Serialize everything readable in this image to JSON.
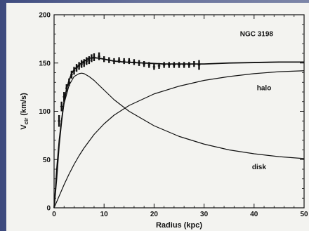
{
  "chart_data": {
    "type": "line",
    "title": "NGC 3198",
    "xlabel": "Radius (kpc)",
    "ylabel_main": "V",
    "ylabel_sub": "cir",
    "ylabel_unit": "(km/s)",
    "xlim": [
      0,
      50
    ],
    "ylim": [
      0,
      200
    ],
    "xticks": [
      0,
      10,
      20,
      30,
      40,
      50
    ],
    "yticks": [
      0,
      50,
      100,
      150,
      200
    ],
    "grid": false,
    "series": [
      {
        "name": "",
        "values_x": [
          0,
          0.5,
          1,
          1.5,
          2,
          2.5,
          3,
          3.5,
          4,
          5,
          6,
          7,
          8,
          9,
          10,
          12,
          14,
          16,
          18,
          20,
          22,
          25,
          30,
          35,
          40,
          45,
          50
        ],
        "values_y": [
          0,
          30,
          65,
          90,
          110,
          123,
          132,
          139,
          143,
          148,
          152,
          155,
          155.5,
          155,
          154,
          152,
          151,
          150.5,
          150,
          149.5,
          149,
          149,
          149,
          150,
          150.5,
          151,
          151
        ]
      },
      {
        "name": "halo",
        "values_x": [
          0,
          1,
          2,
          3,
          4,
          5,
          6,
          8,
          10,
          12,
          15,
          20,
          25,
          30,
          35,
          40,
          45,
          50
        ],
        "values_y": [
          0,
          12,
          24,
          35,
          45,
          54,
          62,
          76,
          87,
          96,
          106,
          118,
          126,
          132,
          136,
          139,
          141,
          142
        ]
      },
      {
        "name": "disk",
        "values_x": [
          0,
          0.5,
          1,
          1.5,
          2,
          3,
          4,
          5,
          5.5,
          6,
          7,
          8,
          10,
          12,
          15,
          20,
          25,
          30,
          35,
          40,
          45,
          50
        ],
        "values_y": [
          0,
          40,
          70,
          92,
          108,
          127,
          136,
          139,
          139.5,
          139,
          136,
          132,
          122,
          112,
          100,
          85,
          74,
          66,
          60,
          56,
          53,
          51
        ]
      }
    ],
    "observed": {
      "x": [
        1,
        1.5,
        2,
        2.5,
        3,
        3.5,
        4,
        4.5,
        5,
        5.5,
        6,
        6.5,
        7,
        7.5,
        8,
        9,
        10,
        11,
        12,
        13,
        14,
        15,
        16,
        17,
        18,
        19,
        20,
        21,
        22,
        23,
        24,
        25,
        26,
        27,
        28,
        29
      ],
      "y": [
        90,
        105,
        115,
        124,
        130,
        138,
        142,
        145,
        147,
        149,
        150,
        152,
        153,
        155,
        156,
        157,
        154,
        153,
        152,
        153,
        152,
        152,
        151,
        150,
        149,
        148,
        146,
        147,
        148,
        148,
        148,
        148,
        148,
        148,
        149,
        148
      ],
      "err": [
        6,
        5,
        5,
        4,
        4,
        4,
        4,
        4,
        4,
        4,
        4,
        4,
        4,
        4,
        4,
        4,
        3,
        3,
        3,
        3,
        3,
        3,
        3,
        3,
        3,
        3,
        3,
        3,
        3,
        3,
        3,
        3,
        3,
        3,
        3,
        5
      ]
    },
    "annotations": [
      {
        "text": "halo",
        "x": 42,
        "y": 122
      },
      {
        "text": "disk",
        "x": 41,
        "y": 40
      }
    ]
  }
}
